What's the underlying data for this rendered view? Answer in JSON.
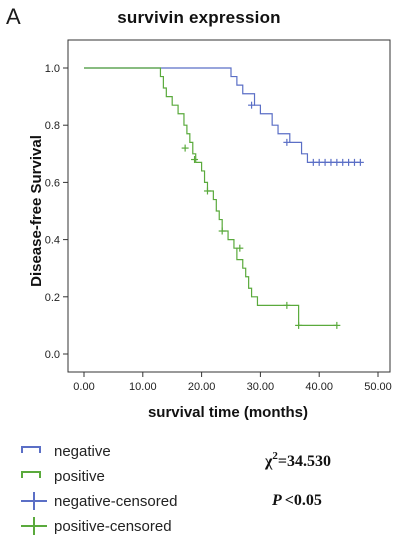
{
  "panel_label": "A",
  "chart_data": {
    "type": "line",
    "title": "survivin expression",
    "xlabel": "survival time (months)",
    "ylabel": "Disease-free Survival",
    "xlim": [
      0,
      50
    ],
    "ylim": [
      0,
      1
    ],
    "x_ticks": [
      "0.00",
      "10.00",
      "20.00",
      "30.00",
      "40.00",
      "50.00"
    ],
    "y_ticks": [
      "0.0",
      "0.2",
      "0.4",
      "0.6",
      "0.8",
      "1.0"
    ],
    "grid": false,
    "legend_position": "bottom-left",
    "series": [
      {
        "name": "negative",
        "color": "#5b6fc6",
        "steps": [
          [
            0,
            1.0
          ],
          [
            25,
            0.97
          ],
          [
            26,
            0.94
          ],
          [
            27,
            0.91
          ],
          [
            29,
            0.87
          ],
          [
            30,
            0.84
          ],
          [
            32,
            0.8
          ],
          [
            33,
            0.77
          ],
          [
            35,
            0.74
          ],
          [
            37,
            0.7
          ],
          [
            38,
            0.67
          ],
          [
            47,
            0.67
          ]
        ],
        "censored": [
          [
            28.5,
            0.87
          ],
          [
            34.5,
            0.74
          ],
          [
            39.0,
            0.67
          ],
          [
            40.0,
            0.67
          ],
          [
            41.0,
            0.67
          ],
          [
            42.0,
            0.67
          ],
          [
            43.0,
            0.67
          ],
          [
            44.0,
            0.67
          ],
          [
            45.0,
            0.67
          ],
          [
            46.0,
            0.67
          ],
          [
            47.0,
            0.67
          ]
        ]
      },
      {
        "name": "positive",
        "color": "#5aaa3c",
        "steps": [
          [
            0,
            1.0
          ],
          [
            13,
            0.97
          ],
          [
            13.5,
            0.93
          ],
          [
            14,
            0.9
          ],
          [
            15,
            0.87
          ],
          [
            16,
            0.84
          ],
          [
            17,
            0.8
          ],
          [
            17.5,
            0.77
          ],
          [
            18,
            0.74
          ],
          [
            18.5,
            0.7
          ],
          [
            19,
            0.67
          ],
          [
            20,
            0.64
          ],
          [
            20.5,
            0.6
          ],
          [
            21,
            0.57
          ],
          [
            22,
            0.54
          ],
          [
            22.5,
            0.5
          ],
          [
            23,
            0.47
          ],
          [
            23.5,
            0.43
          ],
          [
            24.5,
            0.4
          ],
          [
            25.5,
            0.37
          ],
          [
            26,
            0.33
          ],
          [
            27,
            0.3
          ],
          [
            27.5,
            0.27
          ],
          [
            28,
            0.23
          ],
          [
            28.5,
            0.2
          ],
          [
            29.5,
            0.17
          ],
          [
            36.5,
            0.1
          ],
          [
            43,
            0.1
          ]
        ],
        "censored": [
          [
            17.2,
            0.72
          ],
          [
            18.8,
            0.68
          ],
          [
            21.0,
            0.57
          ],
          [
            23.5,
            0.43
          ],
          [
            26.5,
            0.37
          ],
          [
            34.5,
            0.17
          ],
          [
            36.5,
            0.1
          ],
          [
            43.0,
            0.1
          ]
        ]
      }
    ]
  },
  "legend": [
    {
      "label": "negative",
      "kind": "step",
      "color": "#5b6fc6"
    },
    {
      "label": "positive",
      "kind": "step",
      "color": "#5aaa3c"
    },
    {
      "label": "negative-censored",
      "kind": "cross",
      "color": "#5b6fc6"
    },
    {
      "label": "positive-censored",
      "kind": "cross",
      "color": "#5aaa3c"
    }
  ],
  "stats": {
    "chi_symbol": "χ",
    "chi_exp": "2",
    "chi_value": "=34.530",
    "p_symbol": "P",
    "p_value": "<0.05"
  }
}
